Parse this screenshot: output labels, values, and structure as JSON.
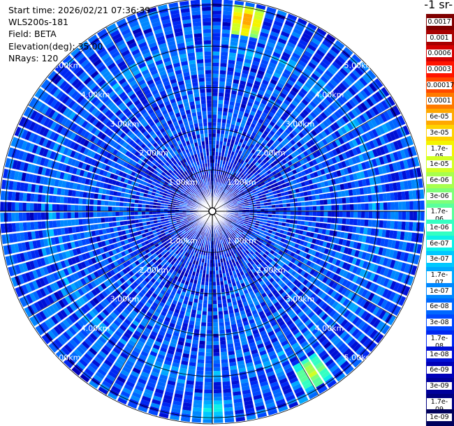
{
  "info": {
    "start_time": "Start time: 2026/02/21 07:36:39",
    "instrument": "WLS200s-181",
    "field": "Field: BETA",
    "elevation": "Elevation(deg): 35.00",
    "nrays": "NRays: 120"
  },
  "colorbar": {
    "title": "-1 sr-",
    "labels": [
      "0.0017",
      "0.001",
      "0.0006",
      "0.0003",
      "0.00017",
      "0.0001",
      "6e-05",
      "3e-05",
      "1.7e-05",
      "1e-05",
      "6e-06",
      "3e-06",
      "1.7e-06",
      "1e-06",
      "6e-07",
      "3e-07",
      "1.7e-07",
      "1e-07",
      "6e-08",
      "3e-08",
      "1.7e-08",
      "1e-08",
      "6e-09",
      "3e-09",
      "1.7e-09",
      "1e-09"
    ],
    "colors": [
      "#7f0000",
      "#a80000",
      "#d40000",
      "#ff1400",
      "#ff4800",
      "#ff7a00",
      "#ffa800",
      "#ffd200",
      "#f4f400",
      "#d2ff24",
      "#a8ff4e",
      "#7eff78",
      "#5aff9c",
      "#34ffc2",
      "#0ef0e8",
      "#00c8ff",
      "#00a8ff",
      "#0088ff",
      "#0068ff",
      "#0048ff",
      "#0028f2",
      "#0010d6",
      "#0000b8",
      "#00009a",
      "#000080",
      "#00005c"
    ]
  },
  "chart_data": {
    "type": "polar_ppi",
    "title": "",
    "field": "BETA",
    "elevation_deg": 35.0,
    "n_rays": 120,
    "range_rings_km": [
      1,
      2,
      3,
      4,
      5
    ],
    "range_ring_labels": [
      "1.00km",
      "2.00km",
      "3.00km",
      "4.00km",
      "5.00km"
    ],
    "max_range_km": 5.15,
    "value_scale": "log",
    "value_range": [
      1e-09,
      0.0017
    ],
    "typical_background_value": 3e-08,
    "features": [
      {
        "name": "enhanced ring",
        "range_km": 3.9,
        "value": 1e-07
      },
      {
        "name": "hot spot",
        "azimuth_deg": 10,
        "range_km": 4.7,
        "value": 0.0001
      },
      {
        "name": "hot spot",
        "azimuth_deg": 148,
        "range_km": 4.6,
        "value": 1e-05
      },
      {
        "name": "hot spot",
        "azimuth_deg": 180,
        "range_km": 4.8,
        "value": 1e-06
      }
    ]
  }
}
